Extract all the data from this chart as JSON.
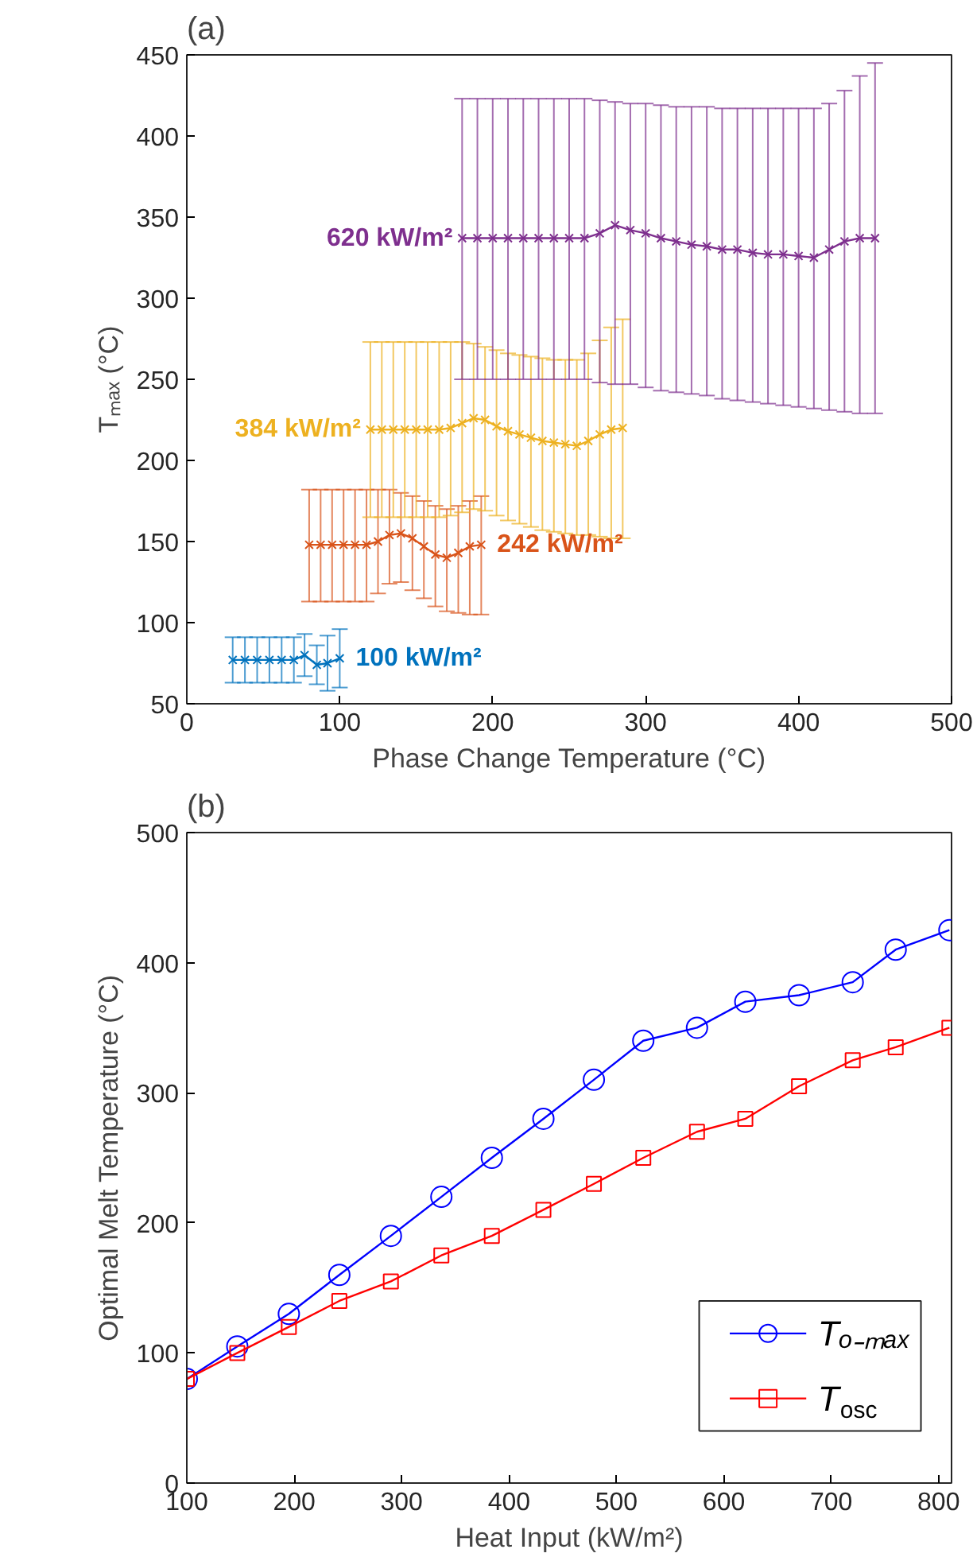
{
  "chart_data": [
    {
      "type": "line",
      "title": "(a)",
      "xlabel": "Phase Change Temperature (°C)",
      "ylabel": "Tₘₐₓ (°C)",
      "xlim": [
        0,
        500
      ],
      "xticks": [
        0,
        100,
        200,
        300,
        400,
        500
      ],
      "ylim": [
        50,
        450
      ],
      "yticks": [
        50,
        100,
        150,
        200,
        250,
        300,
        350,
        400,
        450
      ],
      "marker": "cross",
      "grid": false,
      "series": [
        {
          "name": "100 kW/m²",
          "color": "#0072bd",
          "x": [
            30,
            38,
            46,
            54,
            62,
            70,
            77,
            85,
            92,
            100
          ],
          "values": [
            77,
            77,
            77,
            77,
            77,
            77,
            80,
            74,
            75,
            78
          ],
          "errors": [
            14,
            14,
            14,
            14,
            14,
            14,
            13,
            12,
            17,
            18
          ]
        },
        {
          "name": "242 kW/m²",
          "color": "#d95319",
          "x": [
            80,
            87.5,
            95,
            102.5,
            110,
            117.5,
            125,
            132.5,
            140,
            147.5,
            155,
            162.5,
            170,
            177.5,
            185,
            192.5
          ],
          "values": [
            148,
            148,
            148,
            148,
            148,
            148,
            150,
            154,
            155,
            152,
            147,
            142,
            140,
            143,
            147,
            148
          ],
          "errors": [
            [
              113,
              182
            ],
            [
              113,
              182
            ],
            [
              113,
              182
            ],
            [
              113,
              182
            ],
            [
              113,
              182
            ],
            [
              113,
              182
            ],
            [
              118,
              182
            ],
            [
              124,
              182
            ],
            [
              125,
              180
            ],
            [
              120,
              178
            ],
            [
              115,
              175
            ],
            [
              110,
              172
            ],
            [
              107,
              170
            ],
            [
              106,
              172
            ],
            [
              105,
              175
            ],
            [
              105,
              178
            ]
          ]
        },
        {
          "name": "384 kW/m²",
          "color": "#edb120",
          "x": [
            120,
            127.5,
            135,
            142.5,
            150,
            157.5,
            165,
            172.5,
            180,
            187.5,
            195,
            202.5,
            210,
            217.5,
            225,
            232.5,
            240,
            247.5,
            255,
            262.5,
            270,
            277.5,
            285
          ],
          "values": [
            219,
            219,
            219,
            219,
            219,
            219,
            219,
            220,
            223,
            226,
            225,
            221,
            218,
            216,
            214,
            212,
            211,
            210,
            209,
            212,
            216,
            219,
            220
          ],
          "errors": [
            [
              165,
              273
            ],
            [
              165,
              273
            ],
            [
              165,
              273
            ],
            [
              165,
              273
            ],
            [
              165,
              273
            ],
            [
              165,
              273
            ],
            [
              165,
              273
            ],
            [
              166,
              273
            ],
            [
              168,
              273
            ],
            [
              170,
              272
            ],
            [
              169,
              270
            ],
            [
              166,
              268
            ],
            [
              163,
              266
            ],
            [
              161,
              265
            ],
            [
              159,
              264
            ],
            [
              157,
              263
            ],
            [
              156,
              262
            ],
            [
              155,
              262
            ],
            [
              154,
              262
            ],
            [
              154,
              266
            ],
            [
              153,
              274
            ],
            [
              152,
              282
            ],
            [
              152,
              287
            ]
          ]
        },
        {
          "name": "620 kW/m²",
          "color": "#7e2f8e",
          "x": [
            180,
            190,
            200,
            210,
            220,
            230,
            240,
            250,
            260,
            270,
            280,
            290,
            300,
            310,
            320,
            330,
            340,
            350,
            360,
            370,
            380,
            390,
            400,
            410,
            420,
            430,
            440,
            450
          ],
          "values": [
            337,
            337,
            337,
            337,
            337,
            337,
            337,
            337,
            337,
            340,
            345,
            342,
            340,
            337,
            335,
            333,
            332,
            330,
            330,
            328,
            327,
            327,
            326,
            325,
            330,
            335,
            337,
            337
          ],
          "errors": [
            [
              250,
              423
            ],
            [
              250,
              423
            ],
            [
              250,
              423
            ],
            [
              250,
              423
            ],
            [
              250,
              423
            ],
            [
              250,
              423
            ],
            [
              250,
              423
            ],
            [
              250,
              423
            ],
            [
              250,
              423
            ],
            [
              248,
              422
            ],
            [
              247,
              421
            ],
            [
              247,
              420
            ],
            [
              245,
              420
            ],
            [
              243,
              419
            ],
            [
              242,
              418
            ],
            [
              241,
              418
            ],
            [
              240,
              418
            ],
            [
              238,
              417
            ],
            [
              237,
              417
            ],
            [
              236,
              417
            ],
            [
              235,
              417
            ],
            [
              234,
              417
            ],
            [
              233,
              417
            ],
            [
              232,
              417
            ],
            [
              231,
              420
            ],
            [
              230,
              428
            ],
            [
              229,
              437
            ],
            [
              229,
              445
            ]
          ]
        }
      ]
    },
    {
      "type": "line",
      "title": "(b)",
      "xlabel": "Heat Input (kW/m²)",
      "ylabel": "Optimal Melt Temperature (°C)",
      "xlim": [
        100,
        812
      ],
      "xticks": [
        100,
        200,
        300,
        400,
        500,
        600,
        700,
        800
      ],
      "ylim": [
        0,
        500
      ],
      "yticks": [
        0,
        100,
        200,
        300,
        400,
        500
      ],
      "grid": false,
      "legend": "bottom right",
      "x": [
        100,
        147,
        195,
        242,
        290,
        337,
        384,
        432,
        479,
        525,
        575,
        620,
        670,
        720,
        760,
        810
      ],
      "series": [
        {
          "name": "Tₒ₋ₘₐₓ",
          "color": "#0000ff",
          "marker": "circle",
          "values": [
            80,
            105,
            130,
            160,
            190,
            220,
            250,
            280,
            310,
            340,
            350,
            370,
            375,
            385,
            410,
            425
          ]
        },
        {
          "name": "T$_{osc}$",
          "color": "#ff0000",
          "marker": "square",
          "values": [
            80,
            100,
            120,
            140,
            155,
            175,
            190,
            210,
            230,
            250,
            270,
            280,
            305,
            325,
            335,
            350
          ]
        }
      ]
    }
  ]
}
